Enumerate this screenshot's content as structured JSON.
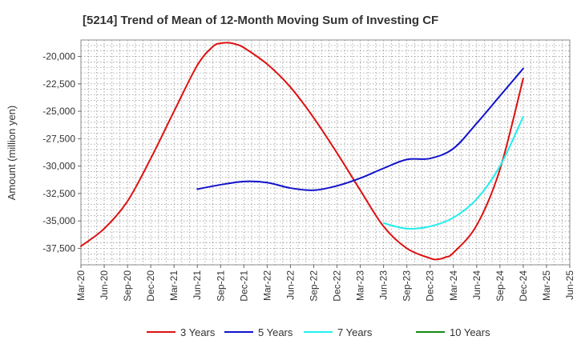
{
  "chart_data": {
    "type": "line",
    "title": "[5214]  Trend of Mean of 12-Month Moving Sum of Investing CF",
    "xlabel": "",
    "ylabel": "Amount (million yen)",
    "ylim": [
      -39000,
      -18500
    ],
    "yticks": [
      -20000,
      -22500,
      -25000,
      -27500,
      -30000,
      -32500,
      -35000,
      -37500
    ],
    "ytick_labels": [
      "-20,000",
      "-22,500",
      "-25,000",
      "-27,500",
      "-30,000",
      "-32,500",
      "-35,000",
      "-37,500"
    ],
    "xtick_labels": [
      "Mar-20",
      "Jun-20",
      "Sep-20",
      "Dec-20",
      "Mar-21",
      "Jun-21",
      "Sep-21",
      "Dec-21",
      "Mar-22",
      "Jun-22",
      "Sep-22",
      "Dec-22",
      "Mar-23",
      "Jun-23",
      "Sep-23",
      "Dec-23",
      "Mar-24",
      "Jun-24",
      "Sep-24",
      "Dec-24",
      "Mar-25",
      "Jun-25"
    ],
    "x_unit": "months since Mar-20",
    "xlim": [
      0,
      63
    ],
    "grid": true,
    "legend_position": "bottom",
    "series": [
      {
        "name": "3 Years",
        "color": "#dd1111",
        "x": [
          0,
          3,
          6,
          9,
          12,
          15,
          17,
          18,
          19,
          20,
          21,
          24,
          27,
          30,
          33,
          36,
          39,
          42,
          45,
          46,
          47,
          48,
          51,
          54,
          57
        ],
        "values": [
          -37300,
          -35700,
          -33200,
          -29300,
          -25000,
          -20800,
          -19100,
          -18800,
          -18750,
          -18900,
          -19200,
          -20700,
          -22800,
          -25600,
          -28800,
          -32200,
          -35500,
          -37500,
          -38400,
          -38500,
          -38300,
          -37900,
          -35400,
          -30300,
          -22000
        ]
      },
      {
        "name": "5 Years",
        "color": "#1111cc",
        "x": [
          15,
          18,
          21,
          24,
          27,
          30,
          33,
          36,
          39,
          42,
          45,
          48,
          51,
          54,
          57
        ],
        "values": [
          -32100,
          -31700,
          -31400,
          -31500,
          -32000,
          -32200,
          -31800,
          -31100,
          -30200,
          -29400,
          -29300,
          -28400,
          -26100,
          -23600,
          -21100
        ]
      },
      {
        "name": "7 Years",
        "color": "#22eeee",
        "x": [
          39,
          42,
          45,
          48,
          51,
          54,
          57
        ],
        "values": [
          -35200,
          -35700,
          -35500,
          -34700,
          -33000,
          -30000,
          -25500
        ]
      },
      {
        "name": "10 Years",
        "color": "#118811",
        "x": [],
        "values": []
      }
    ]
  }
}
